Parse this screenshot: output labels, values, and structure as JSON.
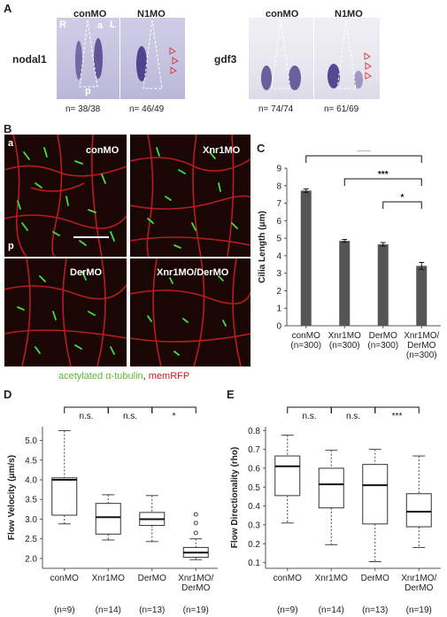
{
  "panelA": {
    "letter": "A",
    "gene1": "nodal1",
    "gene2": "gdf3",
    "col_conMO": "conMO",
    "col_N1MO": "N1MO",
    "axis_R": "R",
    "axis_L": "L",
    "axis_a": "a",
    "axis_p": "p",
    "counts": [
      "n= 38/38",
      "n= 46/49",
      "n= 74/74",
      "n= 61/69"
    ]
  },
  "panelB": {
    "letter": "B",
    "labels": [
      "conMO",
      "Xnr1MO",
      "DerMO",
      "Xnr1MO/DerMO"
    ],
    "axis_a": "a",
    "axis_p": "p",
    "caption_green": "acetylated α-tubulin",
    "caption_sep": ",",
    "caption_red": "memRFP"
  },
  "chart_data": [
    {
      "panel": "C",
      "type": "bar",
      "categories": [
        "conMO\n(n=300)",
        "Xnr1MO\n(n=300)",
        "DerMO\n(n=300)",
        "Xnr1MO/\nDerMO\n(n=300)"
      ],
      "values": [
        7.72,
        4.85,
        4.65,
        3.42
      ],
      "errors": [
        0.1,
        0.08,
        0.1,
        0.2
      ],
      "ylabel": "Cilia Length (μm)",
      "ylim": [
        0,
        9
      ],
      "yticks": [
        0,
        1,
        2,
        3,
        4,
        5,
        6,
        7,
        8,
        9
      ],
      "bar_color": "#555555",
      "significance": [
        {
          "from": 0,
          "to": 3,
          "label": "****"
        },
        {
          "from": 1,
          "to": 3,
          "label": "***"
        },
        {
          "from": 2,
          "to": 3,
          "label": "*"
        }
      ]
    },
    {
      "panel": "D",
      "type": "box",
      "categories": [
        "conMO",
        "Xnr1MO",
        "DerMO",
        "Xnr1MO/\nDerMO"
      ],
      "n_labels": [
        "(n=9)",
        "(n=14)",
        "(n=13)",
        "(n=19)"
      ],
      "ylabel": "Flow Velocity (μm/s)",
      "ylim": [
        1.75,
        5.35
      ],
      "yticks": [
        "2.0",
        "2.5",
        "3.0",
        "3.5",
        "4.0",
        "4.5",
        "5.0"
      ],
      "boxes": [
        {
          "min": 2.88,
          "q1": 3.1,
          "median": 4.0,
          "q3": 4.05,
          "max": 5.25,
          "outliers": []
        },
        {
          "min": 2.47,
          "q1": 2.62,
          "median": 3.05,
          "q3": 3.4,
          "max": 3.62,
          "outliers": []
        },
        {
          "min": 2.43,
          "q1": 2.84,
          "median": 3.0,
          "q3": 3.17,
          "max": 3.6,
          "outliers": []
        },
        {
          "min": 1.97,
          "q1": 2.03,
          "median": 2.15,
          "q3": 2.28,
          "max": 2.5,
          "outliers": [
            3.12,
            2.9,
            2.65
          ]
        }
      ],
      "significance": [
        {
          "from": 0,
          "to": 1,
          "label": "n.s."
        },
        {
          "from": 1,
          "to": 2,
          "label": "n.s."
        },
        {
          "from": 2,
          "to": 3,
          "label": "*"
        }
      ]
    },
    {
      "panel": "E",
      "type": "box",
      "categories": [
        "conMO",
        "Xnr1MO",
        "DerMO",
        "Xnr1MO/\nDerMO"
      ],
      "n_labels": [
        "(n=9)",
        "(n=14)",
        "(n=13)",
        "(n=19)"
      ],
      "ylabel": "Flow Directionality (rho)",
      "ylim": [
        0.07,
        0.82
      ],
      "yticks": [
        "0.1",
        "0.2",
        "0.3",
        "0.4",
        "0.5",
        "0.6",
        "0.7",
        "0.8"
      ],
      "boxes": [
        {
          "min": 0.31,
          "q1": 0.455,
          "median": 0.61,
          "q3": 0.665,
          "max": 0.775,
          "outliers": []
        },
        {
          "min": 0.195,
          "q1": 0.39,
          "median": 0.515,
          "q3": 0.6,
          "max": 0.695,
          "outliers": []
        },
        {
          "min": 0.105,
          "q1": 0.305,
          "median": 0.51,
          "q3": 0.62,
          "max": 0.7,
          "outliers": []
        },
        {
          "min": 0.18,
          "q1": 0.29,
          "median": 0.37,
          "q3": 0.465,
          "max": 0.665,
          "outliers": []
        }
      ],
      "significance": [
        {
          "from": 0,
          "to": 1,
          "label": "n.s."
        },
        {
          "from": 1,
          "to": 2,
          "label": "n.s."
        },
        {
          "from": 2,
          "to": 3,
          "label": "***"
        }
      ]
    }
  ]
}
